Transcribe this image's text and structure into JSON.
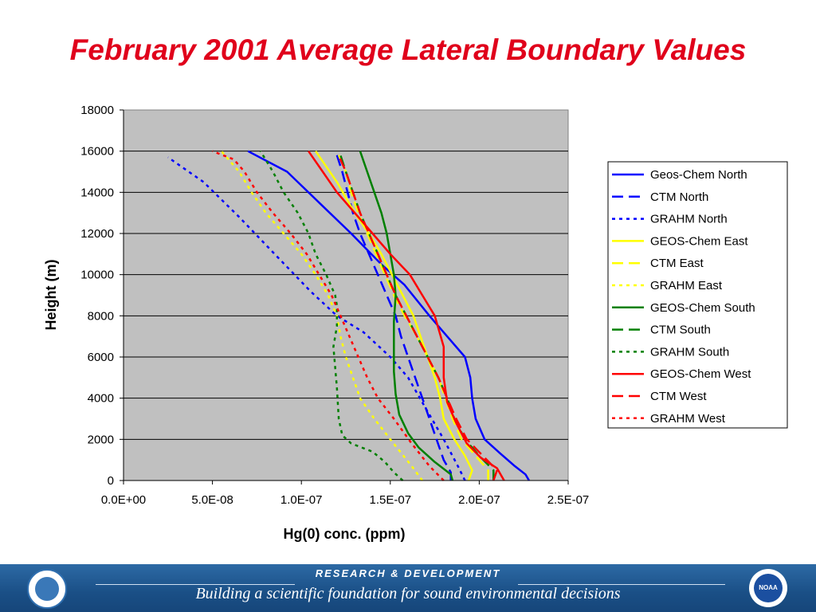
{
  "title": "February 2001 Average Lateral Boundary Values",
  "footer": {
    "line1": "RESEARCH & DEVELOPMENT",
    "line2": "Building a scientific foundation for sound environmental decisions",
    "noaa_text": "NOAA"
  },
  "chart_data": {
    "type": "line",
    "title": "",
    "xlabel": "Hg(0) conc. (ppm)",
    "ylabel": "Height (m)",
    "xlim": [
      0,
      2.5e-07
    ],
    "ylim": [
      0,
      18000
    ],
    "x_ticks": [
      "0.0E+00",
      "5.0E-08",
      "1.0E-07",
      "1.5E-07",
      "2.0E-07",
      "2.5E-07"
    ],
    "y_ticks": [
      "0",
      "2000",
      "4000",
      "6000",
      "8000",
      "10000",
      "12000",
      "14000",
      "16000",
      "18000"
    ],
    "grid": true,
    "plot_background": "#c0c0c0",
    "legend_position": "right",
    "series": [
      {
        "name": "Geos-Chem North",
        "color": "#0000ff",
        "style": "solid",
        "points": [
          [
            2.28e-07,
            0
          ],
          [
            2.26e-07,
            300
          ],
          [
            2.2e-07,
            700
          ],
          [
            2.12e-07,
            1300
          ],
          [
            2.03e-07,
            2000
          ],
          [
            1.98e-07,
            3000
          ],
          [
            1.96e-07,
            4000
          ],
          [
            1.95e-07,
            5000
          ],
          [
            1.92e-07,
            6000
          ],
          [
            1.82e-07,
            7000
          ],
          [
            1.72e-07,
            8000
          ],
          [
            1.58e-07,
            9500
          ],
          [
            1.45e-07,
            10500
          ],
          [
            1.28e-07,
            12000
          ],
          [
            1.1e-07,
            13500
          ],
          [
            9.2e-08,
            15000
          ],
          [
            7e-08,
            16000
          ]
        ]
      },
      {
        "name": "CTM North",
        "color": "#0000ff",
        "style": "dash",
        "points": [
          [
            1.84e-07,
            0
          ],
          [
            1.84e-07,
            400
          ],
          [
            1.8e-07,
            1000
          ],
          [
            1.76e-07,
            2000
          ],
          [
            1.72e-07,
            3000
          ],
          [
            1.68e-07,
            4000
          ],
          [
            1.64e-07,
            5000
          ],
          [
            1.6e-07,
            6000
          ],
          [
            1.56e-07,
            7000
          ],
          [
            1.53e-07,
            8000
          ],
          [
            1.48e-07,
            9000
          ],
          [
            1.43e-07,
            10000
          ],
          [
            1.38e-07,
            11000
          ],
          [
            1.33e-07,
            12000
          ],
          [
            1.29e-07,
            13000
          ],
          [
            1.26e-07,
            14000
          ],
          [
            1.23e-07,
            15000
          ],
          [
            1.2e-07,
            15800
          ]
        ]
      },
      {
        "name": "GRAHM North",
        "color": "#0000ff",
        "style": "dot",
        "points": [
          [
            1.92e-07,
            0
          ],
          [
            1.88e-07,
            700
          ],
          [
            1.8e-07,
            2000
          ],
          [
            1.7e-07,
            3500
          ],
          [
            1.6e-07,
            5000
          ],
          [
            1.5e-07,
            6000
          ],
          [
            1.35e-07,
            7200
          ],
          [
            1.2e-07,
            8000
          ],
          [
            1.05e-07,
            9200
          ],
          [
            8.5e-08,
            11000
          ],
          [
            6.5e-08,
            12800
          ],
          [
            4.5e-08,
            14500
          ],
          [
            2.5e-08,
            15700
          ]
        ]
      },
      {
        "name": "GEOS-Chem East",
        "color": "#ffff00",
        "style": "solid",
        "points": [
          [
            1.94e-07,
            0
          ],
          [
            1.96e-07,
            500
          ],
          [
            1.92e-07,
            1200
          ],
          [
            1.86e-07,
            2000
          ],
          [
            1.8e-07,
            3000
          ],
          [
            1.78e-07,
            4000
          ],
          [
            1.75e-07,
            5000
          ],
          [
            1.71e-07,
            6000
          ],
          [
            1.67e-07,
            7000
          ],
          [
            1.63e-07,
            8000
          ],
          [
            1.57e-07,
            9000
          ],
          [
            1.51e-07,
            10000
          ],
          [
            1.45e-07,
            11000
          ],
          [
            1.38e-07,
            12000
          ],
          [
            1.3e-07,
            13000
          ],
          [
            1.2e-07,
            14500
          ],
          [
            1.08e-07,
            16000
          ]
        ]
      },
      {
        "name": "CTM East",
        "color": "#ffff00",
        "style": "dash",
        "points": [
          [
            2.05e-07,
            0
          ],
          [
            2.05e-07,
            500
          ],
          [
            1.98e-07,
            1200
          ],
          [
            1.9e-07,
            2000
          ],
          [
            1.85e-07,
            3000
          ],
          [
            1.81e-07,
            4000
          ],
          [
            1.77e-07,
            5000
          ],
          [
            1.71e-07,
            6000
          ],
          [
            1.65e-07,
            7000
          ],
          [
            1.58e-07,
            8000
          ],
          [
            1.52e-07,
            9000
          ],
          [
            1.47e-07,
            10000
          ],
          [
            1.42e-07,
            11000
          ],
          [
            1.37e-07,
            12000
          ],
          [
            1.32e-07,
            13000
          ],
          [
            1.28e-07,
            14000
          ],
          [
            1.25e-07,
            15000
          ],
          [
            1.21e-07,
            15800
          ]
        ]
      },
      {
        "name": "GRAHM East",
        "color": "#ffff00",
        "style": "dot",
        "points": [
          [
            1.68e-07,
            0
          ],
          [
            1.62e-07,
            700
          ],
          [
            1.5e-07,
            2000
          ],
          [
            1.41e-07,
            3000
          ],
          [
            1.33e-07,
            4000
          ],
          [
            1.29e-07,
            5000
          ],
          [
            1.25e-07,
            6000
          ],
          [
            1.22e-07,
            7000
          ],
          [
            1.2e-07,
            8000
          ],
          [
            1.15e-07,
            9000
          ],
          [
            1.08e-07,
            10000
          ],
          [
            1e-07,
            11000
          ],
          [
            9e-08,
            12000
          ],
          [
            8e-08,
            13000
          ],
          [
            7.2e-08,
            14000
          ],
          [
            6.5e-08,
            15000
          ],
          [
            5.5e-08,
            16000
          ]
        ]
      },
      {
        "name": "GEOS-Chem South",
        "color": "#008000",
        "style": "solid",
        "points": [
          [
            1.85e-07,
            0
          ],
          [
            1.84e-07,
            300
          ],
          [
            1.75e-07,
            900
          ],
          [
            1.66e-07,
            1600
          ],
          [
            1.6e-07,
            2300
          ],
          [
            1.55e-07,
            3200
          ],
          [
            1.53e-07,
            4200
          ],
          [
            1.52e-07,
            5300
          ],
          [
            1.52e-07,
            6500
          ],
          [
            1.52e-07,
            7700
          ],
          [
            1.53e-07,
            9000
          ],
          [
            1.52e-07,
            10000
          ],
          [
            1.5e-07,
            11000
          ],
          [
            1.48e-07,
            12000
          ],
          [
            1.45e-07,
            13000
          ],
          [
            1.41e-07,
            14000
          ],
          [
            1.37e-07,
            15000
          ],
          [
            1.33e-07,
            16000
          ]
        ]
      },
      {
        "name": "CTM South",
        "color": "#008000",
        "style": "dash",
        "points": [
          [
            2.08e-07,
            0
          ],
          [
            2.08e-07,
            500
          ],
          [
            2e-07,
            1200
          ],
          [
            1.92e-07,
            2000
          ],
          [
            1.86e-07,
            3000
          ],
          [
            1.82e-07,
            4000
          ],
          [
            1.77e-07,
            5000
          ],
          [
            1.71e-07,
            6000
          ],
          [
            1.65e-07,
            7000
          ],
          [
            1.59e-07,
            8000
          ],
          [
            1.53e-07,
            9000
          ],
          [
            1.48e-07,
            10000
          ],
          [
            1.43e-07,
            11000
          ],
          [
            1.38e-07,
            12000
          ],
          [
            1.33e-07,
            13000
          ],
          [
            1.29e-07,
            14000
          ],
          [
            1.25e-07,
            15000
          ],
          [
            1.22e-07,
            15800
          ]
        ]
      },
      {
        "name": "GRAHM South",
        "color": "#008000",
        "style": "dot",
        "points": [
          [
            1.57e-07,
            0
          ],
          [
            1.52e-07,
            400
          ],
          [
            1.47e-07,
            900
          ],
          [
            1.4e-07,
            1400
          ],
          [
            1.28e-07,
            1800
          ],
          [
            1.23e-07,
            2200
          ],
          [
            1.21e-07,
            3000
          ],
          [
            1.2e-07,
            4500
          ],
          [
            1.19e-07,
            5500
          ],
          [
            1.18e-07,
            6500
          ],
          [
            1.2e-07,
            7500
          ],
          [
            1.2e-07,
            8500
          ],
          [
            1.19e-07,
            9000
          ],
          [
            1.14e-07,
            10000
          ],
          [
            1.08e-07,
            11000
          ],
          [
            1.04e-07,
            12000
          ],
          [
            9.8e-08,
            13000
          ],
          [
            9e-08,
            14000
          ],
          [
            8.4e-08,
            15000
          ],
          [
            7.7e-08,
            16000
          ]
        ]
      },
      {
        "name": "GEOS-Chem West",
        "color": "#ff0000",
        "style": "solid",
        "points": [
          [
            2.14e-07,
            0
          ],
          [
            2.1e-07,
            600
          ],
          [
            2.01e-07,
            1100
          ],
          [
            1.93e-07,
            1800
          ],
          [
            1.87e-07,
            2800
          ],
          [
            1.82e-07,
            3800
          ],
          [
            1.8e-07,
            5000
          ],
          [
            1.8e-07,
            6500
          ],
          [
            1.75e-07,
            8000
          ],
          [
            1.68e-07,
            9000
          ],
          [
            1.61e-07,
            10000
          ],
          [
            1.5e-07,
            11000
          ],
          [
            1.4e-07,
            12000
          ],
          [
            1.3e-07,
            13000
          ],
          [
            1.2e-07,
            14000
          ],
          [
            1.12e-07,
            15000
          ],
          [
            1.04e-07,
            16000
          ]
        ]
      },
      {
        "name": "CTM West",
        "color": "#ff0000",
        "style": "dash",
        "points": [
          [
            2.08e-07,
            0
          ],
          [
            2.1e-07,
            500
          ],
          [
            2.02e-07,
            1200
          ],
          [
            1.93e-07,
            2000
          ],
          [
            1.87e-07,
            3000
          ],
          [
            1.82e-07,
            4000
          ],
          [
            1.77e-07,
            5000
          ],
          [
            1.71e-07,
            6000
          ],
          [
            1.65e-07,
            7000
          ],
          [
            1.59e-07,
            8000
          ],
          [
            1.53e-07,
            9000
          ],
          [
            1.48e-07,
            10000
          ],
          [
            1.43e-07,
            11000
          ],
          [
            1.38e-07,
            12000
          ],
          [
            1.33e-07,
            13000
          ],
          [
            1.29e-07,
            14000
          ],
          [
            1.25e-07,
            15000
          ],
          [
            1.21e-07,
            15800
          ]
        ]
      },
      {
        "name": "GRAHM West",
        "color": "#ff0000",
        "style": "dot",
        "points": [
          [
            1.8e-07,
            0
          ],
          [
            1.72e-07,
            700
          ],
          [
            1.62e-07,
            1800
          ],
          [
            1.52e-07,
            3000
          ],
          [
            1.43e-07,
            4000
          ],
          [
            1.37e-07,
            5000
          ],
          [
            1.32e-07,
            6000
          ],
          [
            1.27e-07,
            7000
          ],
          [
            1.22e-07,
            8000
          ],
          [
            1.17e-07,
            9000
          ],
          [
            1.1e-07,
            10000
          ],
          [
            1.03e-07,
            11000
          ],
          [
            9.4e-08,
            12000
          ],
          [
            8.4e-08,
            13000
          ],
          [
            7.5e-08,
            14000
          ],
          [
            6.8e-08,
            15000
          ],
          [
            6.2e-08,
            15600
          ],
          [
            5e-08,
            16000
          ]
        ]
      }
    ]
  }
}
